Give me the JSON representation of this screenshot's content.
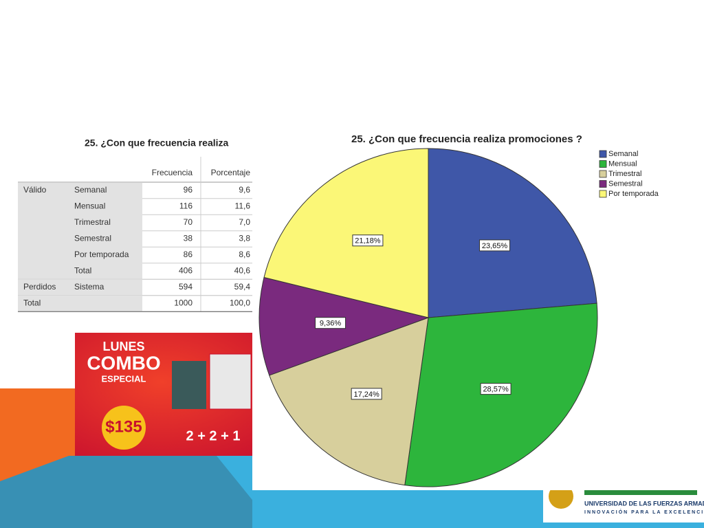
{
  "chart_data": {
    "type": "pie",
    "title": "25. ¿Con que frecuencia realiza promociones ?",
    "categories": [
      "Semanal",
      "Mensual",
      "Trimestral",
      "Semestral",
      "Por temporada"
    ],
    "values": [
      23.65,
      28.57,
      17.24,
      9.36,
      21.18
    ],
    "value_labels": [
      "23,65%",
      "28,57%",
      "17,24%",
      "9,36%",
      "21,18%"
    ],
    "colors": [
      "#3f57a8",
      "#2db53c",
      "#d7cf9c",
      "#7a2a7e",
      "#fbf777"
    ],
    "legend": "upper right"
  },
  "table": {
    "title": "25. ¿Con que frecuencia realiza",
    "headers": [
      "Frecuencia",
      "Porcentaje"
    ],
    "groups": [
      {
        "name": "Válido",
        "rows": [
          [
            "Semanal",
            "96",
            "9,6"
          ],
          [
            "Mensual",
            "116",
            "11,6"
          ],
          [
            "Trimestral",
            "70",
            "7,0"
          ],
          [
            "Semestral",
            "38",
            "3,8"
          ],
          [
            "Por temporada",
            "86",
            "8,6"
          ],
          [
            "Total",
            "406",
            "40,6"
          ]
        ]
      },
      {
        "name": "Perdidos",
        "rows": [
          [
            "Sistema",
            "594",
            "59,4"
          ]
        ]
      },
      {
        "name": "Total",
        "rows": [
          [
            null,
            "1000",
            "100,0"
          ]
        ]
      }
    ]
  },
  "promo": {
    "line1": "LUNES",
    "line2": "COMBO",
    "line3": "ESPECIAL",
    "price": "$135",
    "offer": "2 + 2 + 1"
  },
  "footer": {
    "name": "UNIVERSIDAD DE LAS FUERZAS ARMADAS",
    "motto": "INNOVACIÓN PARA LA EXCELENCIA"
  }
}
